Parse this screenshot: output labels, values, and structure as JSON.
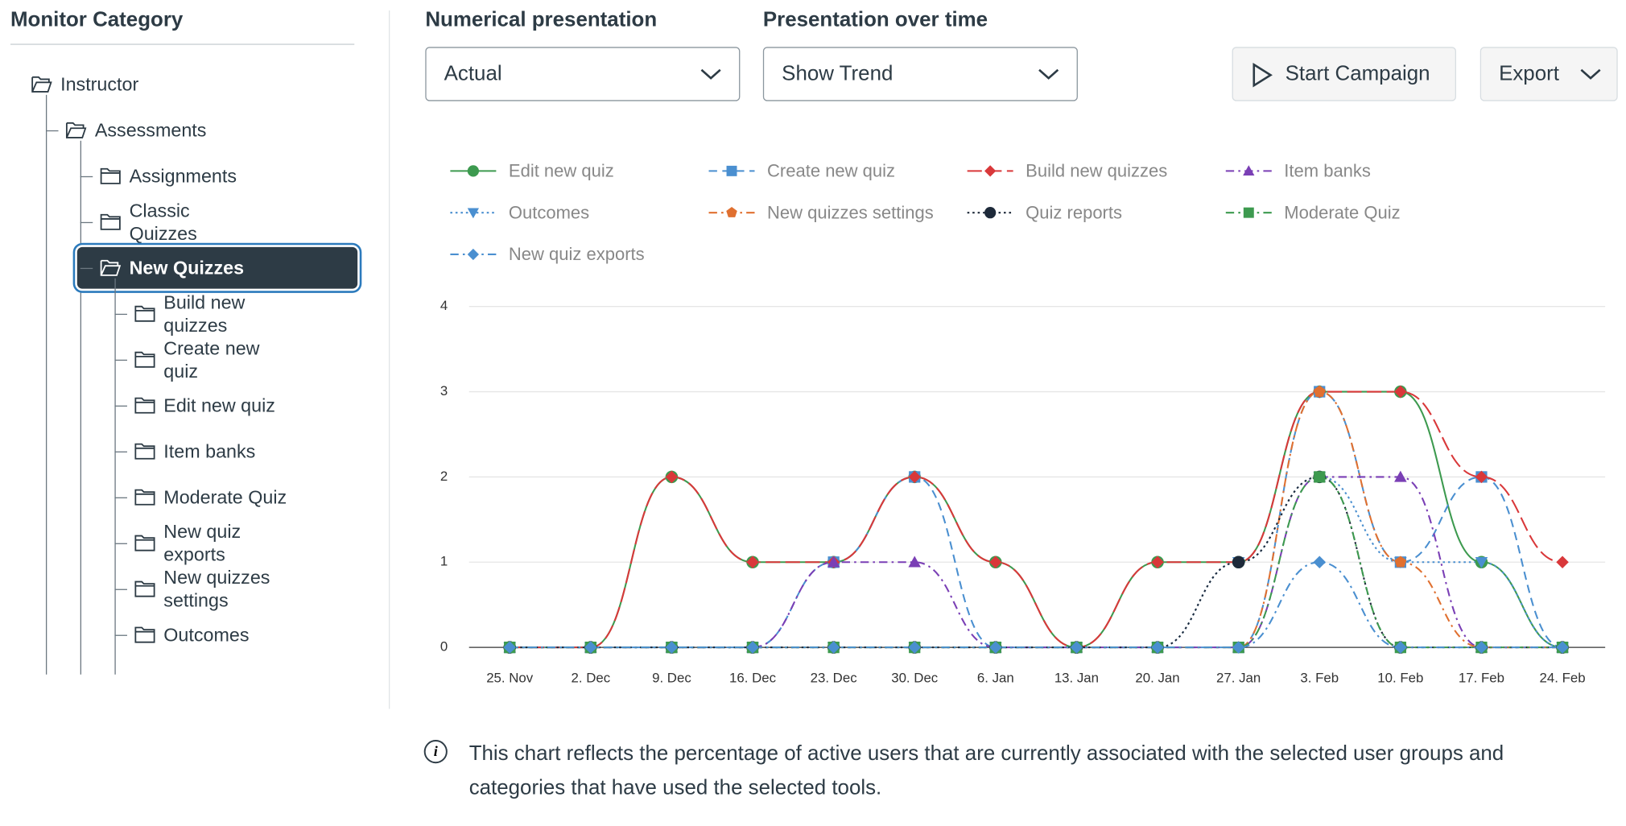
{
  "sidebar": {
    "title": "Monitor Category",
    "tree": {
      "nodes": [
        {
          "label": "Instructor",
          "children": [
            {
              "label": "Assessments",
              "children": [
                {
                  "label": "Assignments"
                },
                {
                  "label": "Classic Quizzes"
                },
                {
                  "label": "New Quizzes",
                  "selected": true,
                  "children": [
                    {
                      "label": "Build new quizzes"
                    },
                    {
                      "label": "Create new quiz"
                    },
                    {
                      "label": "Edit new quiz"
                    },
                    {
                      "label": "Item banks"
                    },
                    {
                      "label": "Moderate Quiz"
                    },
                    {
                      "label": "New quiz exports"
                    },
                    {
                      "label": "New quizzes settings"
                    },
                    {
                      "label": "Outcomes"
                    }
                  ]
                }
              ]
            }
          ]
        }
      ]
    }
  },
  "controls": {
    "numerical": {
      "label": "Numerical presentation",
      "value": "Actual"
    },
    "over_time": {
      "label": "Presentation over time",
      "value": "Show Trend"
    },
    "start_campaign": "Start Campaign",
    "export": "Export"
  },
  "chart_data": {
    "type": "line",
    "categories": [
      "25. Nov",
      "2. Dec",
      "9. Dec",
      "16. Dec",
      "23. Dec",
      "30. Dec",
      "6. Jan",
      "13. Jan",
      "20. Jan",
      "27. Jan",
      "3. Feb",
      "10. Feb",
      "17. Feb",
      "24. Feb"
    ],
    "ylim": [
      0,
      4
    ],
    "yticks": [
      0,
      1,
      2,
      3,
      4
    ],
    "grid": true,
    "series": [
      {
        "name": "Edit new quiz",
        "color": "#3d9a4f",
        "dash": "solid",
        "marker": "circle",
        "values": [
          0,
          0,
          2,
          1,
          1,
          2,
          1,
          0,
          1,
          1,
          3,
          3,
          1,
          0
        ]
      },
      {
        "name": "Create new quiz",
        "color": "#4a8fd0",
        "dash": "dashed",
        "marker": "square",
        "values": [
          0,
          0,
          0,
          0,
          1,
          2,
          0,
          0,
          0,
          0,
          3,
          1,
          2,
          0
        ]
      },
      {
        "name": "Build new quizzes",
        "color": "#d9383a",
        "dash": "longdash",
        "marker": "diamond",
        "values": [
          0,
          0,
          2,
          1,
          1,
          2,
          1,
          0,
          1,
          1,
          3,
          3,
          2,
          1
        ]
      },
      {
        "name": "Item banks",
        "color": "#7a3fb5",
        "dash": "dashdot",
        "marker": "triangle",
        "values": [
          0,
          0,
          0,
          0,
          1,
          1,
          0,
          0,
          0,
          0,
          2,
          2,
          0,
          0
        ]
      },
      {
        "name": "Outcomes",
        "color": "#4a8fd0",
        "dash": "dotted",
        "marker": "triangle-down",
        "values": [
          0,
          0,
          0,
          0,
          0,
          0,
          0,
          0,
          0,
          1,
          2,
          1,
          1,
          0
        ]
      },
      {
        "name": "New quizzes settings",
        "color": "#e07030",
        "dash": "dashdot",
        "marker": "pentagon",
        "values": [
          0,
          0,
          0,
          0,
          0,
          0,
          0,
          0,
          0,
          0,
          3,
          1,
          0,
          0
        ]
      },
      {
        "name": "Quiz reports",
        "color": "#1e2a3a",
        "dash": "dotted",
        "marker": "circle",
        "values": [
          0,
          0,
          0,
          0,
          0,
          0,
          0,
          0,
          0,
          1,
          2,
          0,
          0,
          0
        ]
      },
      {
        "name": "Moderate Quiz",
        "color": "#3d9a4f",
        "dash": "dashdot",
        "marker": "square",
        "values": [
          0,
          0,
          0,
          0,
          0,
          0,
          0,
          0,
          0,
          0,
          2,
          0,
          0,
          0
        ]
      },
      {
        "name": "New quiz exports",
        "color": "#4a8fd0",
        "dash": "dashdot",
        "marker": "diamond",
        "values": [
          0,
          0,
          0,
          0,
          0,
          0,
          0,
          0,
          0,
          0,
          1,
          0,
          0,
          0
        ]
      }
    ]
  },
  "note": "This chart reflects the percentage of active users that are currently associated with the selected user groups and categories that have used the selected tools."
}
